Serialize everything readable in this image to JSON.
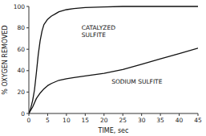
{
  "chart_data": {
    "type": "line",
    "xlabel": "TIME, sec",
    "ylabel": "% OXYGEN REMOVED",
    "xlim": [
      0,
      45
    ],
    "ylim": [
      0,
      100
    ],
    "xticks": [
      0,
      5,
      10,
      15,
      20,
      25,
      30,
      35,
      40,
      45
    ],
    "yticks": [
      0,
      20,
      40,
      60,
      80,
      100
    ],
    "grid": false,
    "series": [
      {
        "color": "#111111",
        "x": [
          0,
          0.5,
          1,
          1.5,
          2,
          2.5,
          3,
          3.5,
          4,
          5,
          6,
          7,
          8,
          10,
          12,
          15,
          20,
          25,
          30,
          45
        ],
        "values": [
          0,
          5,
          12,
          22,
          38,
          55,
          68,
          77,
          83,
          88,
          91,
          93,
          95,
          97,
          98,
          99,
          99.5,
          100,
          100,
          100
        ]
      },
      {
        "color": "#111111",
        "x": [
          0,
          0.5,
          1,
          1.5,
          2,
          3,
          4,
          5,
          6,
          7,
          8,
          10,
          12,
          15,
          20,
          25,
          30,
          35,
          40,
          45
        ],
        "values": [
          0,
          3,
          6,
          10,
          14,
          19,
          23,
          26,
          28,
          29.5,
          31,
          32.5,
          33.5,
          35,
          37.5,
          41,
          46,
          51,
          56,
          61
        ]
      }
    ],
    "annotations": [
      {
        "text": "CATALYZED",
        "x": 14,
        "y": 80
      },
      {
        "text": "SULFITE",
        "x": 14,
        "y": 73
      },
      {
        "text": "SODIUM SULFITE",
        "x": 22,
        "y": 29
      }
    ]
  }
}
